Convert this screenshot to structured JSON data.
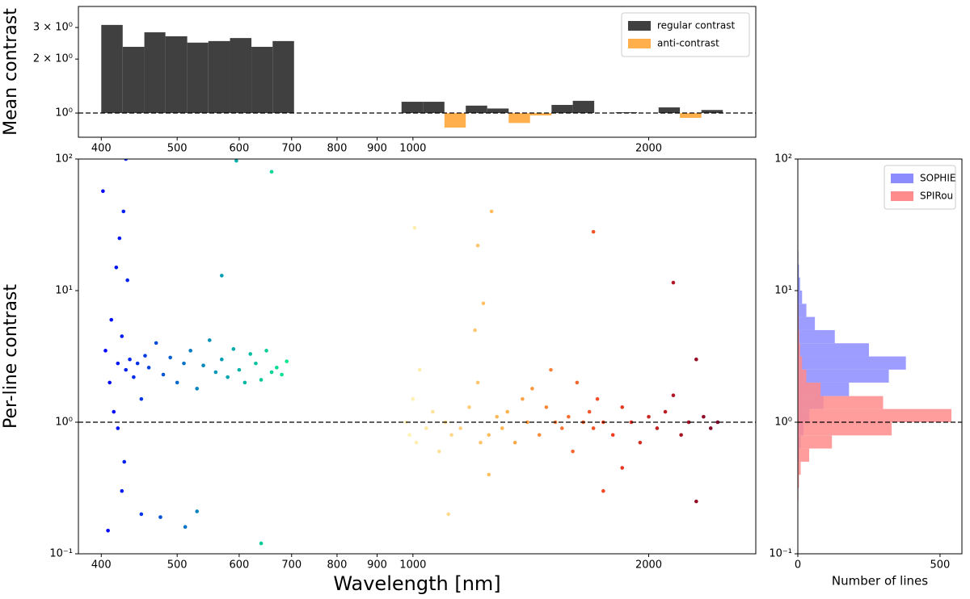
{
  "chart_data": [
    {
      "type": "histogram",
      "ylabel": "Mean contrast",
      "xscale": "log",
      "yscale": "log",
      "xlim": [
        374,
        2740
      ],
      "ylim": [
        0.733,
        3.93
      ],
      "xticks": [
        400,
        500,
        600,
        700,
        800,
        900,
        1000,
        2000
      ],
      "yticks": [
        {
          "value": 1,
          "label": "10⁰"
        },
        {
          "value": 2,
          "label": "2 × 10⁰"
        },
        {
          "value": 3,
          "label": "3 × 10⁰"
        }
      ],
      "hline": 1,
      "legend": "upper right",
      "bins": [
        400,
        426,
        454,
        483,
        515,
        548,
        584,
        622,
        662,
        705,
        967,
        1030,
        1097,
        1168,
        1244,
        1325,
        1411,
        1503,
        1600,
        1704,
        1815,
        1933,
        2059,
        2192,
        2335,
        2487
      ],
      "series": [
        {
          "name": "regular contrast",
          "color": "#404040",
          "values": [
            3.1,
            2.34,
            2.82,
            2.68,
            2.47,
            2.52,
            2.62,
            2.34,
            2.52,
            null,
            1.156,
            1.156,
            null,
            1.1,
            1.06,
            null,
            null,
            1.11,
            1.17,
            null,
            1.01,
            null,
            1.075,
            null,
            1.04
          ]
        },
        {
          "name": "anti-contrast",
          "color": "#ffb04d",
          "values": [
            null,
            null,
            null,
            null,
            null,
            null,
            null,
            null,
            null,
            null,
            null,
            null,
            0.83,
            null,
            null,
            0.88,
            0.97,
            null,
            null,
            null,
            null,
            null,
            null,
            0.94,
            null
          ]
        }
      ]
    },
    {
      "type": "scatter",
      "xlabel": "Wavelength [nm]",
      "ylabel": "Per-line contrast",
      "xscale": "log",
      "yscale": "log",
      "xlim": [
        374,
        2740
      ],
      "ylim": [
        0.1,
        100
      ],
      "xticks": [
        400,
        500,
        600,
        700,
        800,
        900,
        1000,
        2000
      ],
      "yticks": [
        {
          "value": 0.1,
          "label": "10⁻¹"
        },
        {
          "value": 1,
          "label": "10⁰"
        },
        {
          "value": 10,
          "label": "10¹"
        },
        {
          "value": 100,
          "label": "10²"
        }
      ],
      "hline": 1,
      "series": [
        {
          "cmap": [
            "#0000ff",
            "#0080c0",
            "#00e68c"
          ],
          "x": [
            405,
            410,
            412,
            415,
            418,
            420,
            422,
            425,
            428,
            430,
            432,
            435,
            440,
            445,
            450,
            455,
            460,
            470,
            480,
            490,
            500,
            510,
            520,
            530,
            540,
            550,
            560,
            570,
            580,
            590,
            600,
            610,
            620,
            630,
            640,
            650,
            660,
            670,
            680,
            690,
            408,
            420,
            425,
            427,
            430,
            402,
            450,
            476,
            512,
            530,
            570,
            595,
            640,
            660
          ],
          "y": [
            3.5,
            2.0,
            6.0,
            1.2,
            15,
            2.8,
            25,
            4.5,
            0.5,
            2.5,
            12,
            3.0,
            2.2,
            2.8,
            1.5,
            3.2,
            2.6,
            4.0,
            2.3,
            3.1,
            2.0,
            2.8,
            3.5,
            1.8,
            2.7,
            4.2,
            2.4,
            3.0,
            2.2,
            3.6,
            2.5,
            2.0,
            3.3,
            2.8,
            2.1,
            3.5,
            2.4,
            2.6,
            2.3,
            2.9,
            0.15,
            0.9,
            0.3,
            40,
            100,
            57,
            0.2,
            0.19,
            0.16,
            0.21,
            13,
            97,
            0.12,
            80
          ]
        },
        {
          "cmap": [
            "#fff5b8",
            "#fdb04a",
            "#f03b20",
            "#800026"
          ],
          "x": [
            980,
            990,
            1000,
            1010,
            1020,
            1040,
            1060,
            1080,
            1100,
            1120,
            1150,
            1180,
            1200,
            1210,
            1220,
            1230,
            1250,
            1280,
            1300,
            1320,
            1350,
            1380,
            1400,
            1420,
            1450,
            1480,
            1500,
            1520,
            1550,
            1580,
            1600,
            1620,
            1650,
            1680,
            1700,
            1720,
            1750,
            1800,
            1850,
            1900,
            1950,
            2000,
            2050,
            2100,
            2150,
            2200,
            2250,
            2300,
            2350,
            2400,
            2450,
            1005,
            1110,
            1210,
            1250,
            1260,
            1700,
            1750,
            1850,
            2150,
            2300
          ],
          "y": [
            1.0,
            0.8,
            1.5,
            0.7,
            2.5,
            0.9,
            1.2,
            0.6,
            1.0,
            0.8,
            0.9,
            1.3,
            5,
            2.0,
            0.7,
            8,
            0.8,
            1.1,
            0.9,
            1.2,
            0.7,
            1.5,
            1.0,
            1.8,
            0.8,
            1.3,
            2.5,
            1.0,
            0.9,
            1.1,
            0.6,
            2.0,
            1.0,
            1.2,
            0.9,
            1.5,
            1.0,
            0.8,
            1.3,
            1.0,
            0.7,
            1.1,
            0.9,
            1.2,
            1.6,
            0.8,
            1.0,
            3.0,
            1.1,
            0.9,
            1.0,
            30,
            0.2,
            22,
            0.4,
            40,
            28,
            0.3,
            0.45,
            11.5,
            0.25
          ]
        }
      ]
    },
    {
      "type": "histogram",
      "orientation": "horizontal",
      "xlabel": "Number of lines",
      "xscale": "linear",
      "yscale": "log",
      "xlim": [
        0,
        577
      ],
      "ylim": [
        0.1,
        100
      ],
      "xticks": [
        0,
        500
      ],
      "yticks": [
        {
          "value": 0.1,
          "label": "10⁻¹"
        },
        {
          "value": 1,
          "label": "10⁰"
        },
        {
          "value": 10,
          "label": "10¹"
        },
        {
          "value": 100,
          "label": "10²"
        }
      ],
      "hline": 1,
      "legend": "upper right",
      "bins": [
        0.1,
        0.126,
        0.158,
        0.2,
        0.251,
        0.316,
        0.398,
        0.501,
        0.631,
        0.794,
        1,
        1.26,
        1.58,
        2,
        2.51,
        3.16,
        3.98,
        5.01,
        6.31,
        7.94,
        10,
        12.6,
        15.8,
        20,
        25.1,
        31.6,
        39.8,
        50.1,
        63.1,
        79.4,
        100
      ],
      "series": [
        {
          "name": "SOPHIE",
          "color": "#8c8cff",
          "values": [
            0,
            0,
            0,
            0,
            0,
            0,
            2,
            5,
            10,
            20,
            40,
            90,
            180,
            320,
            380,
            250,
            130,
            60,
            30,
            15,
            8,
            4,
            2,
            1,
            1,
            0,
            0,
            0,
            0,
            1
          ]
        },
        {
          "name": "SPIRou",
          "color": "#ff8c8c",
          "values": [
            0,
            0,
            0,
            1,
            2,
            4,
            10,
            40,
            120,
            330,
            540,
            300,
            80,
            30,
            15,
            8,
            5,
            3,
            2,
            1,
            1,
            0,
            0,
            0,
            0,
            0,
            0,
            0,
            0,
            0
          ]
        }
      ]
    }
  ]
}
